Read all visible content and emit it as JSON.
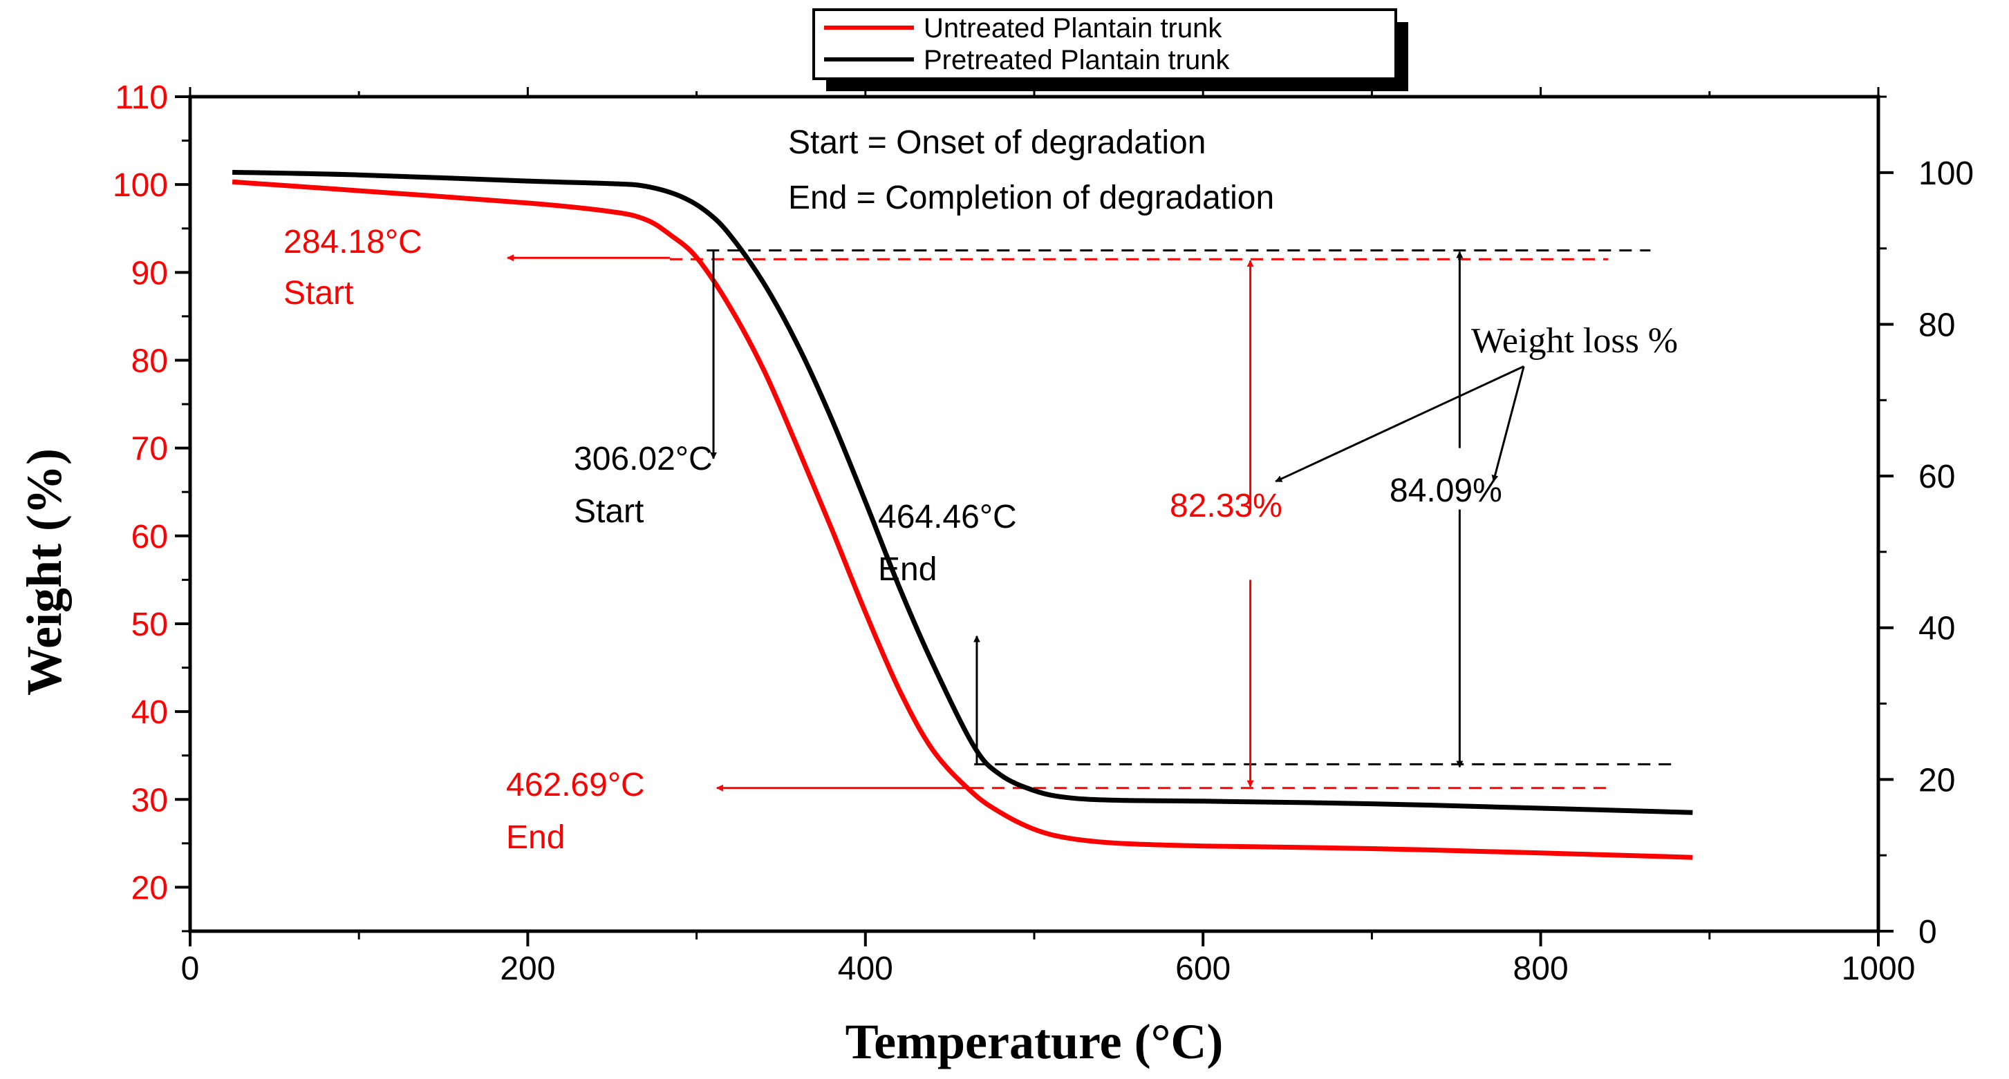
{
  "chart_data": {
    "type": "line",
    "title": "",
    "xlabel": "Temperature (°C)",
    "ylabel": "Weight (%)",
    "xlim": [
      0,
      1000
    ],
    "ylim": [
      15,
      110
    ],
    "y2lim": [
      0,
      110
    ],
    "x_ticks": [
      "0",
      "200",
      "400",
      "600",
      "800",
      "1000"
    ],
    "y_ticks": [
      "20",
      "30",
      "40",
      "50",
      "60",
      "70",
      "80",
      "90",
      "100",
      "110"
    ],
    "y2_ticks": [
      "0",
      "20",
      "40",
      "60",
      "80",
      "100"
    ],
    "colors": {
      "untreated": "#ff0000",
      "pretreated": "#000000"
    },
    "series": [
      {
        "name": "Untreated Plantain trunk",
        "color": "#ff0000",
        "points": [
          [
            25,
            100.3
          ],
          [
            100,
            99.3
          ],
          [
            200,
            97.9
          ],
          [
            250,
            96.9
          ],
          [
            270,
            96.0
          ],
          [
            284.18,
            94.3
          ],
          [
            300,
            91.7
          ],
          [
            320,
            86.0
          ],
          [
            340,
            78.8
          ],
          [
            360,
            70.0
          ],
          [
            380,
            60.8
          ],
          [
            400,
            51.3
          ],
          [
            420,
            42.5
          ],
          [
            440,
            35.6
          ],
          [
            462.69,
            30.9
          ],
          [
            480,
            28.5
          ],
          [
            500,
            26.6
          ],
          [
            520,
            25.6
          ],
          [
            550,
            25.0
          ],
          [
            600,
            24.7
          ],
          [
            700,
            24.4
          ],
          [
            800,
            23.9
          ],
          [
            890,
            23.4
          ]
        ]
      },
      {
        "name": "Pretreated Plantain trunk",
        "color": "#000000",
        "points": [
          [
            25,
            101.4
          ],
          [
            100,
            101.1
          ],
          [
            200,
            100.4
          ],
          [
            250,
            100.1
          ],
          [
            270,
            99.8
          ],
          [
            290,
            98.7
          ],
          [
            306.02,
            96.9
          ],
          [
            320,
            94.2
          ],
          [
            340,
            88.7
          ],
          [
            360,
            81.7
          ],
          [
            380,
            73.3
          ],
          [
            400,
            63.9
          ],
          [
            420,
            54.2
          ],
          [
            440,
            45.4
          ],
          [
            464.46,
            36.0
          ],
          [
            480,
            32.8
          ],
          [
            500,
            31.0
          ],
          [
            520,
            30.2
          ],
          [
            550,
            29.9
          ],
          [
            600,
            29.8
          ],
          [
            700,
            29.5
          ],
          [
            800,
            29.0
          ],
          [
            890,
            28.5
          ]
        ]
      }
    ],
    "annotations": {
      "definitions": [
        "Start = Onset of degradation",
        "End = Completion of degradation"
      ],
      "untreated_start_temp": "284.18°C",
      "untreated_start_label": "Start",
      "pretreated_start_temp": "306.02°C",
      "pretreated_start_label": "Start",
      "pretreated_end_temp": "464.46°C",
      "pretreated_end_label": "End",
      "untreated_end_temp": "462.69°C",
      "untreated_end_label": "End",
      "weight_loss_label": "Weight loss %",
      "untreated_loss": "82.33%",
      "pretreated_loss": "84.09%"
    },
    "reference_levels": {
      "untreated_start_weight": 91.5,
      "pretreated_start_weight": 92.5,
      "untreated_end_weight": 31.3,
      "pretreated_end_weight": 34.0
    },
    "legend": {
      "position": "top-center",
      "entries": [
        "Untreated Plantain trunk",
        "Pretreated Plantain trunk"
      ]
    }
  }
}
